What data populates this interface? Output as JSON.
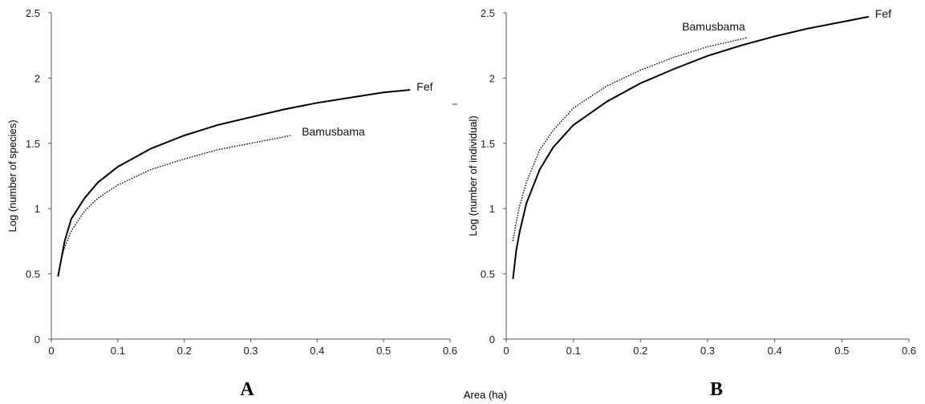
{
  "figure": {
    "shared_xlabel": "Area (ha)"
  },
  "chart_data": [
    {
      "type": "line",
      "panel_label": "A",
      "title": "",
      "xlabel": "Area (ha)",
      "ylabel": "Log (number of species)",
      "xlim": [
        0,
        0.6
      ],
      "ylim": [
        0,
        2.5
      ],
      "x_ticks": [
        "0",
        "0.1",
        "0.2",
        "0.3",
        "0.4",
        "0.5",
        "0.6"
      ],
      "y_ticks": [
        "0",
        "0.5",
        "1",
        "1.5",
        "2",
        "2.5"
      ],
      "grid": false,
      "series": [
        {
          "name": "Fef",
          "style": "solid",
          "x": [
            0.01,
            0.02,
            0.03,
            0.05,
            0.07,
            0.1,
            0.15,
            0.2,
            0.25,
            0.3,
            0.35,
            0.4,
            0.45,
            0.5,
            0.54
          ],
          "values": [
            0.48,
            0.75,
            0.92,
            1.08,
            1.2,
            1.32,
            1.46,
            1.56,
            1.64,
            1.7,
            1.76,
            1.81,
            1.85,
            1.89,
            1.91
          ]
        },
        {
          "name": "Bamusbama",
          "style": "dotted",
          "x": [
            0.015,
            0.02,
            0.03,
            0.05,
            0.07,
            0.1,
            0.15,
            0.2,
            0.25,
            0.3,
            0.33,
            0.36
          ],
          "values": [
            0.62,
            0.7,
            0.83,
            0.98,
            1.08,
            1.18,
            1.3,
            1.38,
            1.45,
            1.5,
            1.53,
            1.56
          ]
        }
      ]
    },
    {
      "type": "line",
      "panel_label": "B",
      "title": "",
      "xlabel": "Area (ha)",
      "ylabel": "Log (number of individual)",
      "xlim": [
        0,
        0.6
      ],
      "ylim": [
        0,
        2.5
      ],
      "x_ticks": [
        "0",
        "0.1",
        "0.2",
        "0.3",
        "0.4",
        "0.5",
        "0.6"
      ],
      "y_ticks": [
        "0",
        "0.5",
        "1",
        "1.5",
        "2",
        "2.5"
      ],
      "grid": false,
      "series": [
        {
          "name": "Fef",
          "style": "solid",
          "x": [
            0.01,
            0.015,
            0.02,
            0.03,
            0.05,
            0.07,
            0.1,
            0.15,
            0.2,
            0.25,
            0.3,
            0.35,
            0.4,
            0.45,
            0.5,
            0.54
          ],
          "values": [
            0.46,
            0.68,
            0.82,
            1.04,
            1.3,
            1.47,
            1.64,
            1.82,
            1.96,
            2.07,
            2.17,
            2.25,
            2.32,
            2.38,
            2.43,
            2.47
          ]
        },
        {
          "name": "Bamusbama",
          "style": "dotted",
          "x": [
            0.01,
            0.015,
            0.02,
            0.03,
            0.05,
            0.07,
            0.1,
            0.15,
            0.2,
            0.25,
            0.3,
            0.36
          ],
          "values": [
            0.75,
            0.9,
            1.02,
            1.2,
            1.45,
            1.6,
            1.77,
            1.94,
            2.06,
            2.16,
            2.24,
            2.31
          ]
        }
      ]
    }
  ]
}
